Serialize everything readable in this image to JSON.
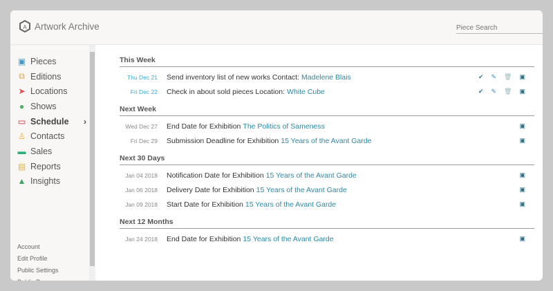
{
  "app": {
    "title": "Artwork Archive",
    "search_placeholder": "Piece Search"
  },
  "sidebar": {
    "items": [
      {
        "label": "Pieces",
        "icon": "image-icon",
        "color": "#3a9bd1"
      },
      {
        "label": "Editions",
        "icon": "copies-icon",
        "color": "#f0a020"
      },
      {
        "label": "Locations",
        "icon": "location-arrow-icon",
        "color": "#e84a4a"
      },
      {
        "label": "Shows",
        "icon": "map-pin-icon",
        "color": "#4caf60"
      },
      {
        "label": "Schedule",
        "icon": "calendar-icon",
        "color": "#e87070",
        "active": true
      },
      {
        "label": "Contacts",
        "icon": "user-icon",
        "color": "#f0b040"
      },
      {
        "label": "Sales",
        "icon": "credit-card-icon",
        "color": "#2eae7a"
      },
      {
        "label": "Reports",
        "icon": "document-icon",
        "color": "#e8b030"
      },
      {
        "label": "Insights",
        "icon": "area-chart-icon",
        "color": "#3aa860"
      }
    ],
    "footer": [
      "Account",
      "Edit Profile",
      "Public Settings",
      "Public Page"
    ]
  },
  "sections": [
    {
      "title": "This Week",
      "rows": [
        {
          "date": "Thu Dec 21",
          "text": "Send inventory list of new works Contact:",
          "link": "Madelene Blais",
          "current": true
        },
        {
          "date": "Fri Dec 22",
          "text": "Check in about sold pieces Location:",
          "link": "White Cube",
          "current": true
        }
      ]
    },
    {
      "title": "Next Week",
      "rows": [
        {
          "date": "Wed Dec 27",
          "text": "End Date for Exhibition",
          "link": "The Politics of Sameness"
        },
        {
          "date": "Fri Dec 29",
          "text": "Submission Deadline for Exhibition",
          "link": "15 Years of the Avant Garde"
        }
      ]
    },
    {
      "title": "Next 30 Days",
      "rows": [
        {
          "date": "Jan 04 2018",
          "text": "Notification Date for Exhibition",
          "link": "15 Years of the Avant Garde"
        },
        {
          "date": "Jan 06 2018",
          "text": "Delivery Date for Exhibition",
          "link": "15 Years of the Avant Garde"
        },
        {
          "date": "Jan 09 2018",
          "text": "Start Date for Exhibition",
          "link": "15 Years of the Avant Garde"
        }
      ]
    },
    {
      "title": "Next 12 Months",
      "rows": [
        {
          "date": "Jan 24 2018",
          "text": "End Date for Exhibition",
          "link": "15 Years of the Avant Garde"
        }
      ]
    }
  ]
}
